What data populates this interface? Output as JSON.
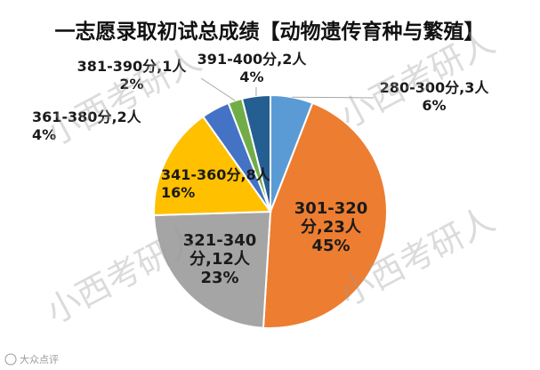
{
  "chart_data": {
    "type": "pie",
    "title": "一志愿录取初试总成绩【动物遗传育种与繁殖】",
    "slices": [
      {
        "category": "280-300分",
        "count": "3人",
        "percent": "6%",
        "value": 3,
        "color": "#5B9BD5"
      },
      {
        "category": "301-320分",
        "count": "23人",
        "percent": "45%",
        "value": 23,
        "color": "#ED7D31"
      },
      {
        "category": "321-340分",
        "count": "12人",
        "percent": "23%",
        "value": 12,
        "color": "#A5A5A5"
      },
      {
        "category": "341-360分",
        "count": "8人",
        "percent": "16%",
        "value": 8,
        "color": "#FFC000"
      },
      {
        "category": "361-380分",
        "count": "2人",
        "percent": "4%",
        "value": 2,
        "color": "#4472C4"
      },
      {
        "category": "381-390分",
        "count": "1人",
        "percent": "2%",
        "value": 1,
        "color": "#70AD47"
      },
      {
        "category": "391-400分",
        "count": "2人",
        "percent": "4%",
        "value": 2,
        "color": "#255E91"
      }
    ],
    "labels": [
      [
        "280-300分,3人",
        "6%"
      ],
      [
        "301-320",
        "分,23人",
        "45%"
      ],
      [
        "321-340",
        "分,12人",
        "23%"
      ],
      [
        "341-360分,8人",
        "16%"
      ],
      [
        "361-380分,2人",
        "4%"
      ],
      [
        "381-390分,1人",
        "2%"
      ],
      [
        "391-400分,2人",
        "4%"
      ]
    ]
  },
  "watermark": "小西考研人",
  "credit": "大众点评"
}
